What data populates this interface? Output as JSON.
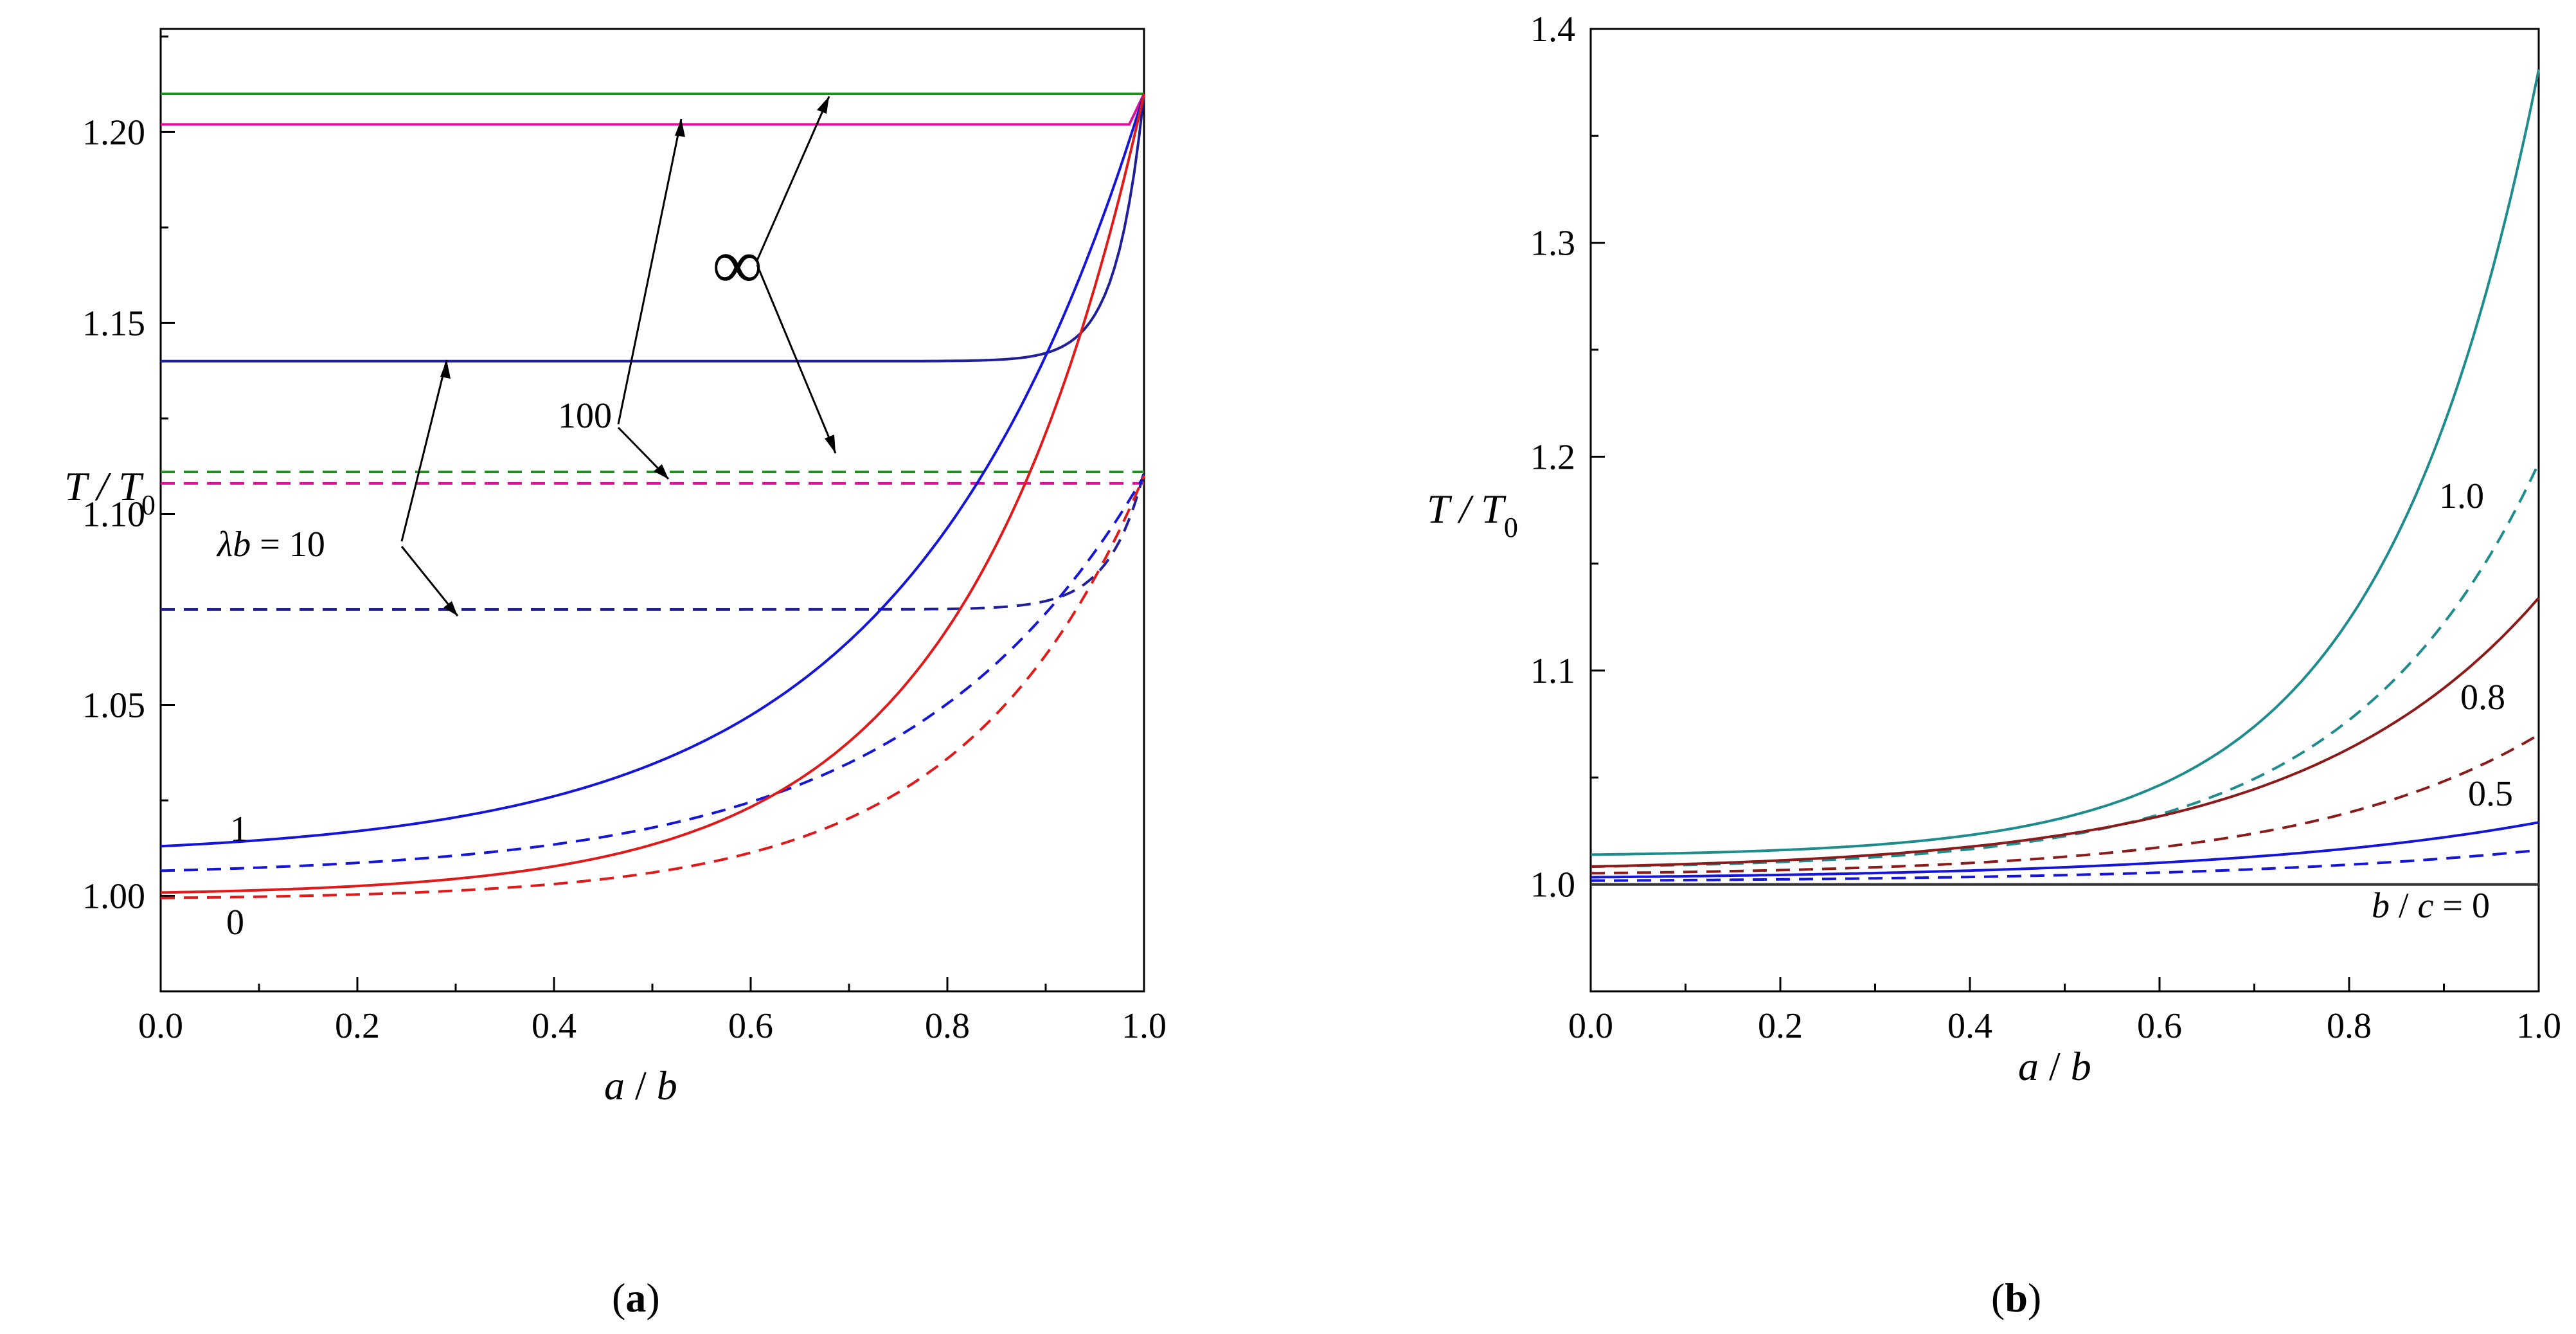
{
  "chart_data": [
    {
      "panel": "(a)",
      "panel_letter": "a",
      "type": "line",
      "xlabel": "a / b",
      "xlabel_italic_1": "a",
      "xlabel_sep": " / ",
      "xlabel_italic_2": "b",
      "ylabel": "T / T0",
      "ylabel_main": "T / T",
      "ylabel_sub": "0",
      "xlim": [
        0.0,
        1.0
      ],
      "ylim": [
        0.975,
        1.227
      ],
      "xticks": [
        "0.0",
        "0.2",
        "0.4",
        "0.6",
        "0.8",
        "1.0"
      ],
      "yticks": [
        "1.00",
        "1.05",
        "1.10",
        "1.15",
        "1.20"
      ],
      "series": [
        {
          "name": "∞ solid",
          "style": "solid",
          "color": "#228B22",
          "params": {
            "base": 1.21,
            "k": 0,
            "amp": 0
          }
        },
        {
          "name": "∞ dashed",
          "style": "dashed",
          "color": "#228B22",
          "params": {
            "base": 1.111,
            "k": 0,
            "amp": 0
          }
        },
        {
          "name": "100 solid",
          "style": "solid",
          "color": "#E0109A",
          "params": {
            "base": 1.202,
            "k": 0,
            "amp": 0,
            "tip": 1.21
          }
        },
        {
          "name": "100 dashed",
          "style": "dashed",
          "color": "#E0109A",
          "params": {
            "base": 1.108,
            "k": 0,
            "amp": 0
          }
        },
        {
          "name": "λb = 10 solid",
          "style": "solid",
          "color": "#1F1F9A",
          "params": {
            "base": 1.14,
            "k": 35,
            "amp": 0.07
          }
        },
        {
          "name": "λb = 10 dashed",
          "style": "dashed",
          "color": "#1F1F9A",
          "params": {
            "base": 1.075,
            "k": 28,
            "amp": 0.036
          }
        },
        {
          "name": "1 solid",
          "style": "solid",
          "color": "#1515D9",
          "params": {
            "base": 1.01,
            "k": 4.2,
            "amp": 0.2
          }
        },
        {
          "name": "1 dashed",
          "style": "dashed",
          "color": "#1515D9",
          "params": {
            "base": 1.005,
            "k": 4.2,
            "amp": 0.105
          }
        },
        {
          "name": "0 solid",
          "style": "solid",
          "color": "#E01A1A",
          "params": {
            "base": 1.0,
            "k": 5.5,
            "amp": 0.21
          }
        },
        {
          "name": "0 dashed",
          "style": "dashed",
          "color": "#E01A1A",
          "params": {
            "base": 0.999,
            "k": 5.5,
            "amp": 0.111
          }
        }
      ],
      "annotations": {
        "infinity": "∞",
        "hundred": "100",
        "lambda_prefix": "λ",
        "lambda_b": "b",
        "lambda_suffix": " = 10",
        "one": "1",
        "zero": "0"
      }
    },
    {
      "panel": "(b)",
      "panel_letter": "b",
      "type": "line",
      "xlabel": "a / b",
      "xlabel_italic_1": "a",
      "xlabel_sep": " / ",
      "xlabel_italic_2": "b",
      "ylabel": "T / T0",
      "ylabel_main": "T / T",
      "ylabel_sub": "0",
      "xlim": [
        0.0,
        1.0
      ],
      "ylim": [
        0.95,
        1.4
      ],
      "xticks": [
        "0.0",
        "0.2",
        "0.4",
        "0.6",
        "0.8",
        "1.0"
      ],
      "yticks": [
        "1.0",
        "1.1",
        "1.2",
        "1.3",
        "1.4"
      ],
      "series": [
        {
          "name": "1.0 solid",
          "style": "solid",
          "color": "#1E8C8C",
          "params": {
            "base": 1.013,
            "k": 6,
            "amp": 0.368
          }
        },
        {
          "name": "1.0 dashed",
          "style": "dashed",
          "color": "#1E8C8C",
          "params": {
            "base": 1.007,
            "k": 5,
            "amp": 0.19
          }
        },
        {
          "name": "0.8 solid",
          "style": "solid",
          "color": "#8B1A1A",
          "params": {
            "base": 1.006,
            "k": 4,
            "amp": 0.128
          }
        },
        {
          "name": "0.8 dashed",
          "style": "dashed",
          "color": "#8B1A1A",
          "params": {
            "base": 1.004,
            "k": 4,
            "amp": 0.066
          }
        },
        {
          "name": "0.5 solid",
          "style": "solid",
          "color": "#1515D9",
          "params": {
            "base": 1.002,
            "k": 3,
            "amp": 0.027
          }
        },
        {
          "name": "0.5 dashed",
          "style": "dashed",
          "color": "#1515D9",
          "params": {
            "base": 1.001,
            "k": 3,
            "amp": 0.015
          }
        },
        {
          "name": "b / c = 0",
          "style": "solid",
          "color": "#333333",
          "params": {
            "base": 1.0,
            "k": 0,
            "amp": 0
          }
        }
      ],
      "annotations": {
        "one": "1.0",
        "point_eight": "0.8",
        "point_five": "0.5",
        "bc_b": "b",
        "bc_sep": " / ",
        "bc_c": "c",
        "bc_eq": " = 0"
      }
    }
  ]
}
